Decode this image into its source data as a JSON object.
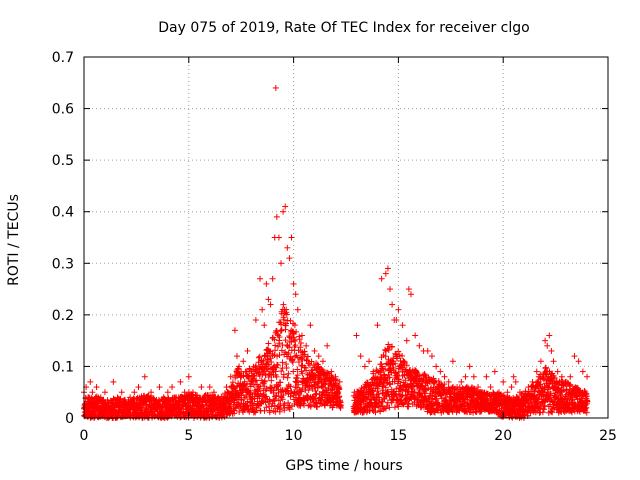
{
  "chart_data": {
    "type": "scatter",
    "title": "Day 075 of 2019, Rate Of TEC Index for receiver clgo",
    "xlabel": "GPS time / hours",
    "ylabel": "ROTI / TECUs",
    "xlim": [
      0,
      25
    ],
    "ylim": [
      0,
      0.7
    ],
    "xticks": [
      0,
      5,
      10,
      15,
      20,
      25
    ],
    "xtick_labels": [
      "0",
      "5",
      "10",
      "15",
      "20",
      "25"
    ],
    "yticks": [
      0,
      0.1,
      0.2,
      0.3,
      0.4,
      0.5,
      0.6,
      0.7
    ],
    "ytick_labels": [
      "0",
      "0.1",
      "0.2",
      "0.3",
      "0.4",
      "0.5",
      "0.6",
      "0.7"
    ],
    "grid": true,
    "marker": "plus",
    "color": "#ff0000",
    "series": [
      {
        "name": "ROTI",
        "x": [
          0.0,
          0.1,
          0.2,
          0.3,
          0.4,
          0.5,
          0.6,
          0.8,
          1.0,
          1.2,
          1.4,
          1.6,
          1.8,
          2.0,
          2.2,
          2.4,
          2.6,
          2.8,
          2.9,
          3.0,
          3.2,
          3.4,
          3.6,
          3.8,
          4.0,
          4.2,
          4.4,
          4.6,
          4.8,
          5.0,
          5.2,
          5.4,
          5.6,
          5.8,
          6.0,
          6.2,
          6.4,
          6.6,
          6.8,
          7.0,
          7.2,
          7.3,
          7.4,
          7.5,
          7.6,
          7.7,
          7.8,
          8.0,
          8.2,
          8.4,
          8.5,
          8.6,
          8.7,
          8.8,
          8.9,
          9.0,
          9.1,
          9.15,
          9.2,
          9.3,
          9.4,
          9.5,
          9.6,
          9.7,
          9.8,
          9.9,
          10.0,
          10.1,
          10.2,
          10.4,
          10.6,
          10.8,
          11.0,
          11.2,
          11.4,
          11.6,
          11.8,
          12.0,
          12.2,
          12.9,
          13.0,
          13.2,
          13.4,
          13.6,
          13.8,
          14.0,
          14.2,
          14.4,
          14.5,
          14.6,
          14.7,
          14.8,
          14.9,
          15.0,
          15.2,
          15.4,
          15.5,
          15.6,
          15.8,
          16.0,
          16.2,
          16.4,
          16.6,
          16.8,
          17.0,
          17.2,
          17.4,
          17.6,
          17.8,
          18.0,
          18.2,
          18.4,
          18.6,
          18.8,
          19.0,
          19.2,
          19.4,
          19.6,
          19.8,
          20.0,
          20.2,
          20.4,
          20.5,
          20.6,
          20.8,
          21.0,
          21.2,
          21.4,
          21.6,
          21.8,
          22.0,
          22.1,
          22.2,
          22.3,
          22.4,
          22.6,
          22.8,
          23.0,
          23.2,
          23.4,
          23.6,
          23.8,
          24.0
        ],
        "y": [
          0.05,
          0.06,
          0.04,
          0.07,
          0.05,
          0.03,
          0.06,
          0.04,
          0.05,
          0.03,
          0.07,
          0.04,
          0.05,
          0.03,
          0.04,
          0.05,
          0.06,
          0.03,
          0.08,
          0.04,
          0.05,
          0.03,
          0.06,
          0.04,
          0.05,
          0.06,
          0.04,
          0.07,
          0.05,
          0.08,
          0.05,
          0.04,
          0.06,
          0.03,
          0.06,
          0.05,
          0.04,
          0.03,
          0.06,
          0.08,
          0.17,
          0.12,
          0.1,
          0.08,
          0.11,
          0.09,
          0.13,
          0.09,
          0.19,
          0.27,
          0.21,
          0.18,
          0.26,
          0.23,
          0.22,
          0.27,
          0.35,
          0.64,
          0.39,
          0.35,
          0.3,
          0.4,
          0.41,
          0.33,
          0.31,
          0.35,
          0.26,
          0.24,
          0.21,
          0.16,
          0.14,
          0.18,
          0.13,
          0.12,
          0.11,
          0.14,
          0.09,
          0.08,
          0.07,
          0.05,
          0.16,
          0.12,
          0.1,
          0.11,
          0.09,
          0.18,
          0.27,
          0.28,
          0.29,
          0.25,
          0.22,
          0.19,
          0.19,
          0.21,
          0.18,
          0.15,
          0.25,
          0.24,
          0.16,
          0.14,
          0.13,
          0.13,
          0.12,
          0.1,
          0.09,
          0.08,
          0.07,
          0.11,
          0.06,
          0.07,
          0.08,
          0.1,
          0.08,
          0.06,
          0.05,
          0.08,
          0.06,
          0.09,
          0.05,
          0.07,
          0.05,
          0.06,
          0.08,
          0.07,
          0.05,
          0.04,
          0.06,
          0.07,
          0.09,
          0.11,
          0.15,
          0.14,
          0.16,
          0.13,
          0.11,
          0.09,
          0.08,
          0.07,
          0.08,
          0.12,
          0.11,
          0.09,
          0.08
        ]
      }
    ],
    "background_band": {
      "x": [
        0.0,
        0.5,
        1.0,
        1.5,
        2.0,
        2.5,
        3.0,
        3.5,
        4.0,
        4.5,
        5.0,
        5.5,
        6.0,
        6.5,
        7.0,
        7.3,
        7.6,
        8.0,
        8.5,
        9.0,
        9.5,
        10.0,
        10.5,
        11.0,
        11.5,
        12.0,
        12.2,
        12.9,
        13.5,
        14.0,
        14.5,
        15.0,
        15.5,
        16.0,
        16.5,
        17.0,
        17.5,
        18.0,
        18.5,
        19.0,
        19.5,
        20.0,
        20.5,
        21.0,
        21.5,
        22.0,
        22.5,
        23.0,
        23.5,
        24.0
      ],
      "y_low": [
        0.0,
        0.0,
        0.0,
        0.0,
        0.0,
        0.0,
        0.0,
        0.0,
        0.0,
        0.0,
        0.0,
        0.0,
        0.0,
        0.0,
        0.005,
        0.01,
        0.01,
        0.01,
        0.01,
        0.01,
        0.01,
        0.02,
        0.02,
        0.02,
        0.02,
        0.02,
        0.02,
        0.01,
        0.01,
        0.01,
        0.02,
        0.02,
        0.02,
        0.02,
        0.01,
        0.01,
        0.01,
        0.01,
        0.01,
        0.01,
        0.01,
        0.0,
        0.0,
        0.0,
        0.01,
        0.01,
        0.01,
        0.01,
        0.01,
        0.01
      ],
      "y_high": [
        0.04,
        0.045,
        0.035,
        0.04,
        0.035,
        0.04,
        0.045,
        0.035,
        0.04,
        0.04,
        0.05,
        0.045,
        0.045,
        0.04,
        0.06,
        0.1,
        0.09,
        0.1,
        0.13,
        0.16,
        0.22,
        0.19,
        0.13,
        0.11,
        0.09,
        0.08,
        0.06,
        0.05,
        0.07,
        0.1,
        0.15,
        0.13,
        0.1,
        0.09,
        0.08,
        0.07,
        0.06,
        0.06,
        0.06,
        0.05,
        0.05,
        0.045,
        0.04,
        0.05,
        0.07,
        0.1,
        0.08,
        0.07,
        0.06,
        0.05
      ]
    }
  }
}
